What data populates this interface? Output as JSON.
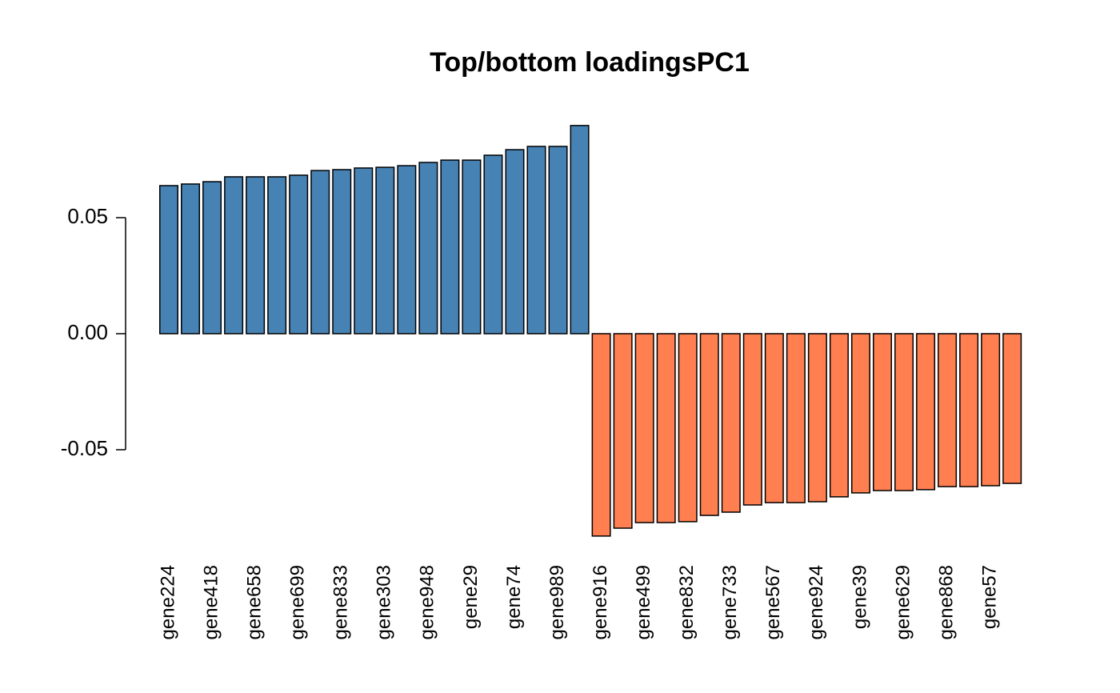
{
  "chart_data": {
    "type": "bar",
    "title": "Top/bottom loadingsPC1",
    "categories": [
      "gene224",
      null,
      "gene418",
      null,
      "gene658",
      null,
      "gene699",
      null,
      "gene833",
      null,
      "gene303",
      null,
      "gene948",
      null,
      "gene29",
      null,
      "gene74",
      null,
      "gene989",
      null,
      "gene916",
      null,
      "gene499",
      null,
      "gene832",
      null,
      "gene733",
      null,
      "gene567",
      null,
      "gene924",
      null,
      "gene39",
      null,
      "gene629",
      null,
      "gene868",
      null,
      "gene57",
      null
    ],
    "values": [
      0.0638,
      0.0645,
      0.0655,
      0.0676,
      0.0676,
      0.0676,
      0.0683,
      0.0703,
      0.0707,
      0.0714,
      0.0717,
      0.0724,
      0.0738,
      0.0748,
      0.0748,
      0.0769,
      0.0793,
      0.0807,
      0.0807,
      0.0897,
      -0.0872,
      -0.0838,
      -0.0814,
      -0.0814,
      -0.081,
      -0.0783,
      -0.0769,
      -0.0738,
      -0.0728,
      -0.0728,
      -0.0724,
      -0.0703,
      -0.0686,
      -0.0676,
      -0.0676,
      -0.0672,
      -0.0659,
      -0.0659,
      -0.0655,
      -0.0645
    ],
    "colors": [
      "#4682b4",
      "#4682b4",
      "#4682b4",
      "#4682b4",
      "#4682b4",
      "#4682b4",
      "#4682b4",
      "#4682b4",
      "#4682b4",
      "#4682b4",
      "#4682b4",
      "#4682b4",
      "#4682b4",
      "#4682b4",
      "#4682b4",
      "#4682b4",
      "#4682b4",
      "#4682b4",
      "#4682b4",
      "#4682b4",
      "#ff7f50",
      "#ff7f50",
      "#ff7f50",
      "#ff7f50",
      "#ff7f50",
      "#ff7f50",
      "#ff7f50",
      "#ff7f50",
      "#ff7f50",
      "#ff7f50",
      "#ff7f50",
      "#ff7f50",
      "#ff7f50",
      "#ff7f50",
      "#ff7f50",
      "#ff7f50",
      "#ff7f50",
      "#ff7f50",
      "#ff7f50",
      "#ff7f50"
    ],
    "ylim": [
      -0.095,
      0.095
    ],
    "yticks": [
      {
        "value": -0.05,
        "label": "-0.05"
      },
      {
        "value": 0,
        "label": "0.00"
      },
      0.05
    ],
    "grid": false
  }
}
